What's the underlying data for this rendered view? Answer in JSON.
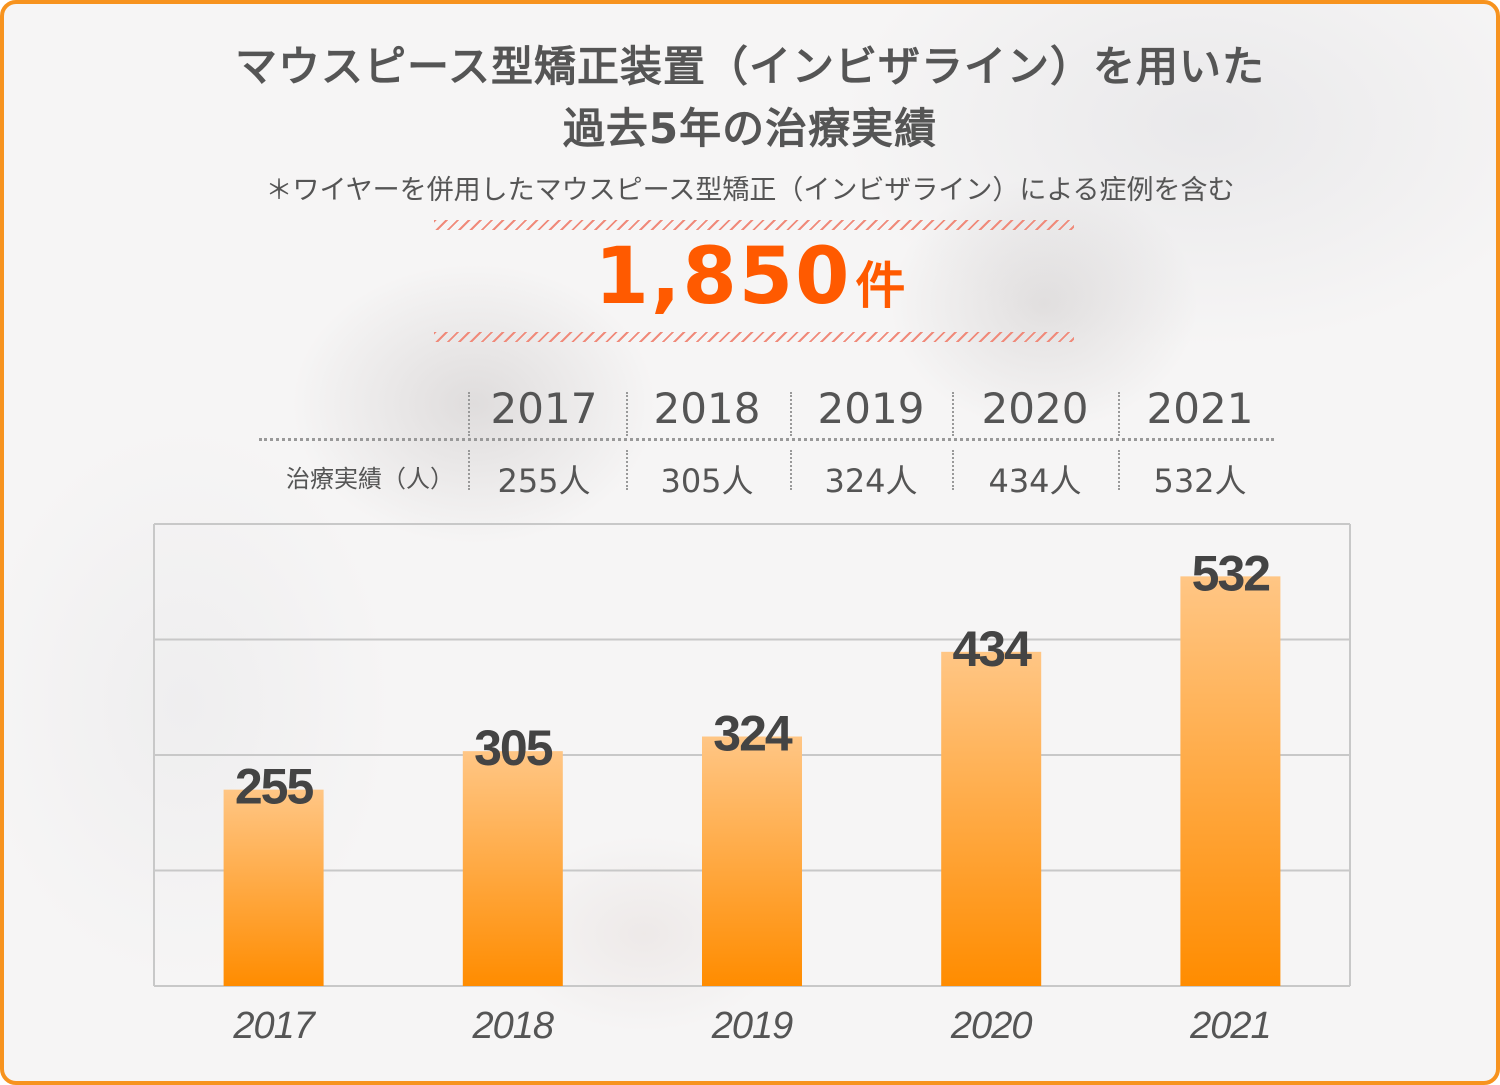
{
  "header": {
    "title_line1": "マウスピース型矯正装置（インビザライン）を用いた",
    "title_line2": "過去5年の治療実績",
    "note": "＊ワイヤーを併用したマウスピース型矯正（インビザライン）による症例を含む",
    "total_number": "1,850",
    "total_unit": "件"
  },
  "table": {
    "row_label": "治療実績（人）",
    "years": [
      "2017",
      "2018",
      "2019",
      "2020",
      "2021"
    ],
    "values": [
      "255人",
      "305人",
      "324人",
      "434人",
      "532人"
    ]
  },
  "colors": {
    "accent": "#ff5a00",
    "border": "#f7931e",
    "bar_top": "#ffc685",
    "bar_bottom": "#ff8c00",
    "text": "#555555"
  },
  "chart_data": {
    "type": "bar",
    "categories": [
      "2017",
      "2018",
      "2019",
      "2020",
      "2021"
    ],
    "values": [
      255,
      305,
      324,
      434,
      532
    ],
    "title": "",
    "xlabel": "",
    "ylabel": "",
    "ylim": [
      0,
      600
    ],
    "grid": true
  }
}
